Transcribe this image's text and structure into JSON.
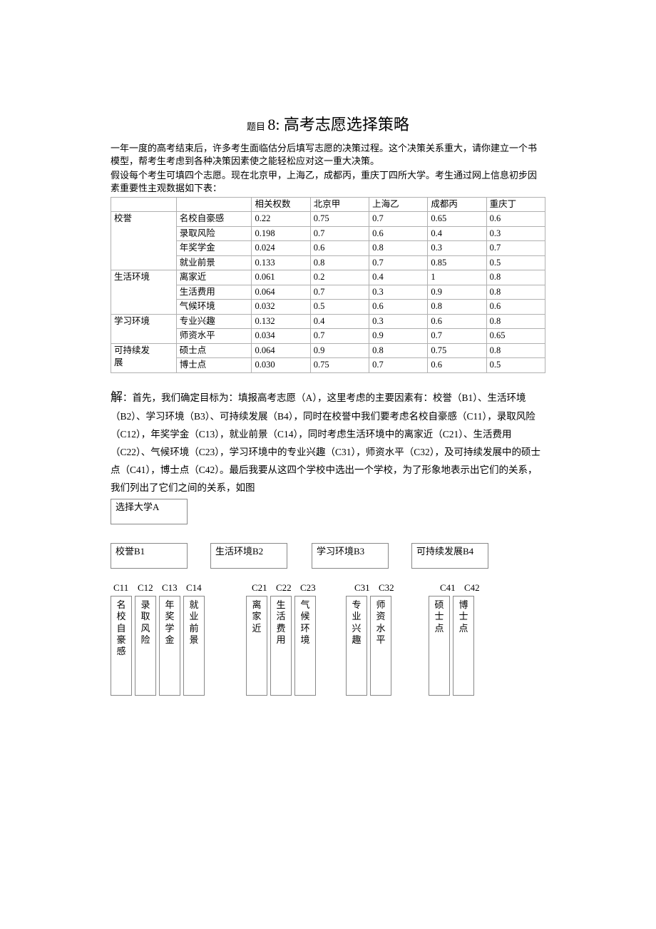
{
  "title": {
    "prefix": "题目",
    "main": "8: 高考志愿选择策略"
  },
  "intro": {
    "p1": "一年一度的高考结束后，许多考生面临估分后填写志愿的决策过程。这个决策关系重大，请你建立一个书模型，帮考生考虑到各种决策因素使之能轻松应对这一重大决策。",
    "p2": "假设每个考生可填四个志愿。现在北京甲，上海乙，成都丙，重庆丁四所大学。考生通过网上信息初步因素重要性主观数据如下表："
  },
  "table": {
    "headers": [
      "",
      "",
      "相关权数",
      "北京甲",
      "上海乙",
      "成都丙",
      "重庆丁"
    ],
    "groups": [
      {
        "cat": "校誉",
        "rows": [
          [
            "名校自豪感",
            "0.22",
            "0.75",
            "0.7",
            "0.65",
            "0.6"
          ],
          [
            "录取风险",
            "0.198",
            "0.7",
            "0.6",
            "0.4",
            "0.3"
          ],
          [
            "年奖学金",
            "0.024",
            "0.6",
            "0.8",
            "0.3",
            "0.7"
          ],
          [
            "就业前景",
            "0.133",
            "0.8",
            "0.7",
            "0.85",
            "0.5"
          ]
        ]
      },
      {
        "cat": "生活环境",
        "rows": [
          [
            "离家近",
            "0.061",
            "0.2",
            "0.4",
            "1",
            "0.8"
          ],
          [
            "生活费用",
            "0.064",
            "0.7",
            "0.3",
            "0.9",
            "0.8"
          ],
          [
            "气候环境",
            "0.032",
            "0.5",
            "0.6",
            "0.8",
            "0.6"
          ]
        ]
      },
      {
        "cat": "学习环境",
        "rows": [
          [
            "专业兴趣",
            "0.132",
            "0.4",
            "0.3",
            "0.6",
            "0.8"
          ],
          [
            "师资水平",
            "0.034",
            "0.7",
            "0.9",
            "0.7",
            "0.65"
          ]
        ]
      },
      {
        "cat": "可持续发展",
        "catLines": [
          "可持续发",
          "展"
        ],
        "rows": [
          [
            "硕士点",
            "0.064",
            "0.9",
            "0.8",
            "0.75",
            "0.8"
          ],
          [
            "博士点",
            "0.030",
            "0.75",
            "0.7",
            "0.6",
            "0.5"
          ]
        ]
      }
    ]
  },
  "solution": {
    "lead": "解",
    "body": "：首先，我们确定目标为：填报高考志愿（A），这里考虑的主要因素有：校誉（B1）、生活环境（B2）、学习环境（B3）、可持续发展（B4），同时在校誉中我们要考虑名校自豪感（C11），录取风险（C12），年奖学金（C13），就业前景（C14），同时考虑生活环境中的离家近（C21）、生活费用（C22）、气候环境（C23），学习环境中的专业兴趣（C31），师资水平（C32），及可持续发展中的硕士点（C41），博士点（C42）。最后我要从这四个学校中选出一个学校，为了形象地表示出它们的关系，我们列出了它们之间的关系，如图"
  },
  "diagram": {
    "a": "选择大学A",
    "b": [
      "校誉B1",
      "生活环境B2",
      "学习环境B3",
      "可持续发展B4"
    ],
    "cLabels": [
      [
        "C11",
        "C12",
        "C13",
        "C14"
      ],
      [
        "C21",
        "C22",
        "C23"
      ],
      [
        "C31",
        "C32"
      ],
      [
        "C41",
        "C42"
      ]
    ],
    "cBoxes": [
      [
        "名校自豪感",
        "录取风险",
        "年奖学金",
        "就业前景"
      ],
      [
        "离家近",
        "生活费用",
        "气候环境"
      ],
      [
        "专业兴趣",
        "师资水平"
      ],
      [
        "硕士点",
        "博士点"
      ]
    ],
    "layout": {
      "bGaps": [
        32,
        34,
        32
      ],
      "groupGaps": [
        58,
        42,
        52
      ],
      "cItemGap": 4,
      "cLabelItemWidth": 34,
      "cLabelGroupPad": [
        4,
        16,
        10,
        14
      ]
    }
  },
  "colors": {
    "border": "#b0b0b0",
    "boxBorder": "#888888",
    "text": "#000000",
    "bg": "#ffffff"
  }
}
